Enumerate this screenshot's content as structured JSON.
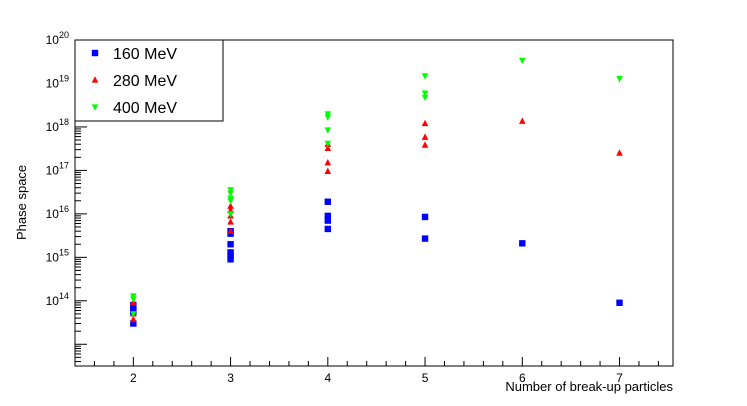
{
  "chart_data": {
    "type": "scatter",
    "xlabel": "Number of break-up particles",
    "ylabel": "Phase space",
    "xlim": [
      1.4,
      7.55
    ],
    "ylog": true,
    "ylim_exp": [
      12.5,
      20
    ],
    "x_ticks": [
      2,
      3,
      4,
      5,
      6,
      7
    ],
    "y_tick_exponents": [
      14,
      15,
      16,
      17,
      18,
      19,
      20
    ],
    "y_tick_base": "10",
    "legend_position": "top-left",
    "series": [
      {
        "name": "160 MeV",
        "color": "#0000ff",
        "marker": "square",
        "points": [
          {
            "x": 2,
            "y": 80000000000000.0
          },
          {
            "x": 2,
            "y": 70000000000000.0
          },
          {
            "x": 2,
            "y": 60000000000000.0
          },
          {
            "x": 2,
            "y": 55000000000000.0
          },
          {
            "x": 2,
            "y": 30000000000000.0
          },
          {
            "x": 3,
            "y": 4000000000000000.0
          },
          {
            "x": 3,
            "y": 3500000000000000.0
          },
          {
            "x": 3,
            "y": 2000000000000000.0
          },
          {
            "x": 3,
            "y": 1300000000000000.0
          },
          {
            "x": 3,
            "y": 1100000000000000.0
          },
          {
            "x": 3,
            "y": 900000000000000.0
          },
          {
            "x": 4,
            "y": 1.9e+16
          },
          {
            "x": 4,
            "y": 9000000000000000.0
          },
          {
            "x": 4,
            "y": 7000000000000000.0
          },
          {
            "x": 4,
            "y": 4500000000000000.0
          },
          {
            "x": 5,
            "y": 8500000000000000.0
          },
          {
            "x": 5,
            "y": 2700000000000000.0
          },
          {
            "x": 6,
            "y": 2100000000000000.0
          },
          {
            "x": 7,
            "y": 90000000000000.0
          }
        ]
      },
      {
        "name": "280 MeV",
        "color": "#ff0000",
        "marker": "triangle-up",
        "points": [
          {
            "x": 2,
            "y": 90000000000000.0
          },
          {
            "x": 2,
            "y": 50000000000000.0
          },
          {
            "x": 2,
            "y": 37000000000000.0
          },
          {
            "x": 3,
            "y": 1.5e+16
          },
          {
            "x": 3,
            "y": 1.2e+16
          },
          {
            "x": 3,
            "y": 9000000000000000.0
          },
          {
            "x": 3,
            "y": 6500000000000000.0
          },
          {
            "x": 3,
            "y": 4000000000000000.0
          },
          {
            "x": 4,
            "y": 4e+17
          },
          {
            "x": 4,
            "y": 3.2e+17
          },
          {
            "x": 4,
            "y": 1.5e+17
          },
          {
            "x": 4,
            "y": 9.5e+16
          },
          {
            "x": 5,
            "y": 1.2e+18
          },
          {
            "x": 5,
            "y": 5.8e+17
          },
          {
            "x": 5,
            "y": 3.8e+17
          },
          {
            "x": 6,
            "y": 1.35e+18
          },
          {
            "x": 7,
            "y": 2.5e+17
          }
        ]
      },
      {
        "name": "400 MeV",
        "color": "#00ff00",
        "marker": "triangle-down",
        "points": [
          {
            "x": 2,
            "y": 130000000000000.0
          },
          {
            "x": 2,
            "y": 110000000000000.0
          },
          {
            "x": 2,
            "y": 50000000000000.0
          },
          {
            "x": 3,
            "y": 3.6e+16
          },
          {
            "x": 3,
            "y": 3e+16
          },
          {
            "x": 3,
            "y": 2.3e+16
          },
          {
            "x": 3,
            "y": 2e+16
          },
          {
            "x": 3,
            "y": 1e+16
          },
          {
            "x": 4,
            "y": 2e+18
          },
          {
            "x": 4,
            "y": 1.7e+18
          },
          {
            "x": 4,
            "y": 8.5e+17
          },
          {
            "x": 4,
            "y": 4.2e+17
          },
          {
            "x": 5,
            "y": 1.5e+19
          },
          {
            "x": 5,
            "y": 6e+18
          },
          {
            "x": 5,
            "y": 4.8e+18
          },
          {
            "x": 6,
            "y": 3.4e+19
          },
          {
            "x": 7,
            "y": 1.3e+19
          }
        ]
      }
    ]
  }
}
